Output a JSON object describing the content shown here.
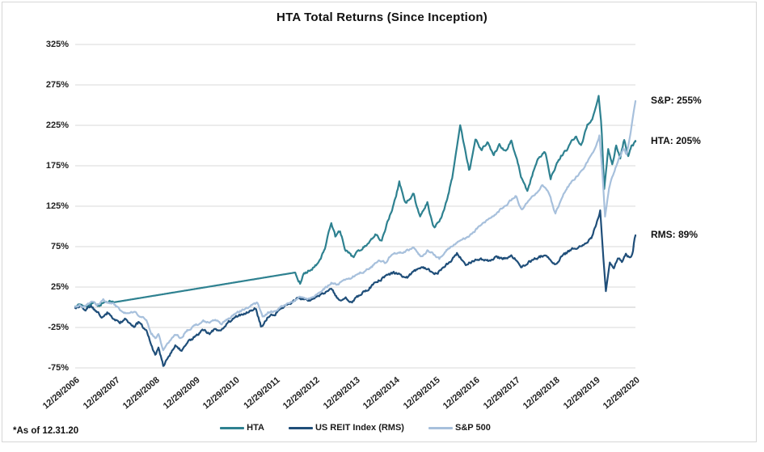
{
  "frame": {
    "title": "HTA Total Returns (Since Inception)",
    "footnote": "*As of 12.31.20"
  },
  "annotations": [
    {
      "id": "sp",
      "label": "S&P: 255%",
      "value": 255
    },
    {
      "id": "hta",
      "label": "HTA: 205%",
      "value": 205
    },
    {
      "id": "rms",
      "label": "RMS: 89%",
      "value": 89
    }
  ],
  "legend": [
    {
      "label": "HTA",
      "color": "#2E8190"
    },
    {
      "label": "US REIT Index (RMS)",
      "color": "#1F4E79"
    },
    {
      "label": "S&P 500",
      "color": "#A7C0DC"
    }
  ],
  "chart_data": {
    "type": "line",
    "title": "HTA Total Returns (Since Inception)",
    "grid": "horizontal",
    "legend_position": "bottom",
    "colors": {
      "grid": "#d9d9d9",
      "zero_axis": "#c9c9c9",
      "text": "#222222"
    },
    "y_axis": {
      "unit": "%",
      "ylim": [
        -75,
        325
      ],
      "ticks": [
        325,
        275,
        225,
        175,
        125,
        75,
        25,
        -25,
        -75
      ],
      "tick_labels": [
        "325%",
        "275%",
        "225%",
        "175%",
        "125%",
        "75%",
        "25%",
        "-25%",
        "-75%"
      ]
    },
    "x_axis": {
      "start": "12/29/2006",
      "end": "12/29/2020",
      "tick_labels": [
        "12/29/2006",
        "12/29/2007",
        "12/29/2008",
        "12/29/2009",
        "12/29/2010",
        "12/29/2011",
        "12/29/2012",
        "12/29/2013",
        "12/29/2014",
        "12/29/2015",
        "12/29/2016",
        "12/29/2017",
        "12/29/2018",
        "12/29/2019",
        "12/29/2020"
      ]
    },
    "series": [
      {
        "name": "HTA",
        "color": "#2E8190",
        "end_value_pct": 205,
        "jitter": 3.0,
        "seed": 7,
        "smooth_ranges": [
          [
            0.97,
            5.46
          ]
        ],
        "points": [
          [
            0,
            0
          ],
          [
            0.15,
            4
          ],
          [
            0.3,
            1
          ],
          [
            0.45,
            6
          ],
          [
            0.6,
            3
          ],
          [
            0.78,
            8
          ],
          [
            0.95,
            6
          ],
          [
            5.5,
            43
          ],
          [
            5.56,
            36
          ],
          [
            5.62,
            30
          ],
          [
            5.7,
            40
          ],
          [
            5.78,
            43
          ],
          [
            5.9,
            47
          ],
          [
            6.1,
            56
          ],
          [
            6.25,
            75
          ],
          [
            6.4,
            105
          ],
          [
            6.5,
            88
          ],
          [
            6.62,
            95
          ],
          [
            6.75,
            72
          ],
          [
            6.95,
            62
          ],
          [
            7.1,
            70
          ],
          [
            7.3,
            78
          ],
          [
            7.5,
            90
          ],
          [
            7.65,
            82
          ],
          [
            7.8,
            105
          ],
          [
            7.95,
            125
          ],
          [
            8.1,
            154
          ],
          [
            8.25,
            128
          ],
          [
            8.45,
            140
          ],
          [
            8.62,
            112
          ],
          [
            8.8,
            130
          ],
          [
            8.95,
            98
          ],
          [
            9.1,
            105
          ],
          [
            9.25,
            125
          ],
          [
            9.42,
            160
          ],
          [
            9.62,
            225
          ],
          [
            9.85,
            168
          ],
          [
            10.0,
            207
          ],
          [
            10.15,
            193
          ],
          [
            10.3,
            205
          ],
          [
            10.45,
            188
          ],
          [
            10.6,
            200
          ],
          [
            10.75,
            192
          ],
          [
            10.9,
            206
          ],
          [
            11.0,
            190
          ],
          [
            11.15,
            160
          ],
          [
            11.3,
            144
          ],
          [
            11.45,
            168
          ],
          [
            11.6,
            186
          ],
          [
            11.75,
            192
          ],
          [
            11.88,
            158
          ],
          [
            12.0,
            174
          ],
          [
            12.15,
            188
          ],
          [
            12.3,
            196
          ],
          [
            12.5,
            212
          ],
          [
            12.65,
            200
          ],
          [
            12.8,
            226
          ],
          [
            12.95,
            236
          ],
          [
            13.08,
            262
          ],
          [
            13.15,
            225
          ],
          [
            13.22,
            146
          ],
          [
            13.32,
            196
          ],
          [
            13.42,
            176
          ],
          [
            13.52,
            200
          ],
          [
            13.62,
            184
          ],
          [
            13.72,
            208
          ],
          [
            13.82,
            188
          ],
          [
            13.9,
            198
          ],
          [
            14,
            205
          ]
        ]
      },
      {
        "name": "US REIT Index (RMS)",
        "color": "#1F4E79",
        "end_value_pct": 89,
        "jitter": 2.8,
        "seed": 13,
        "smooth_ranges": [],
        "points": [
          [
            0,
            0
          ],
          [
            0.12,
            2
          ],
          [
            0.25,
            -3
          ],
          [
            0.4,
            1
          ],
          [
            0.55,
            -6
          ],
          [
            0.68,
            -12
          ],
          [
            0.8,
            -7
          ],
          [
            0.95,
            -14
          ],
          [
            1.1,
            -20
          ],
          [
            1.25,
            -14
          ],
          [
            1.45,
            -24
          ],
          [
            1.6,
            -18
          ],
          [
            1.78,
            -30
          ],
          [
            1.9,
            -45
          ],
          [
            2.0,
            -60
          ],
          [
            2.08,
            -50
          ],
          [
            2.2,
            -72
          ],
          [
            2.35,
            -60
          ],
          [
            2.5,
            -48
          ],
          [
            2.65,
            -53
          ],
          [
            2.8,
            -44
          ],
          [
            3.0,
            -36
          ],
          [
            3.2,
            -28
          ],
          [
            3.35,
            -33
          ],
          [
            3.5,
            -26
          ],
          [
            3.62,
            -30
          ],
          [
            3.8,
            -20
          ],
          [
            4.0,
            -12
          ],
          [
            4.2,
            -8
          ],
          [
            4.38,
            -4
          ],
          [
            4.52,
            -2
          ],
          [
            4.65,
            -25
          ],
          [
            4.8,
            -13
          ],
          [
            5.0,
            -8
          ],
          [
            5.2,
            0
          ],
          [
            5.4,
            5
          ],
          [
            5.6,
            12
          ],
          [
            5.8,
            8
          ],
          [
            6.0,
            12
          ],
          [
            6.2,
            16
          ],
          [
            6.4,
            22
          ],
          [
            6.6,
            8
          ],
          [
            6.75,
            14
          ],
          [
            6.9,
            6
          ],
          [
            7.05,
            13
          ],
          [
            7.25,
            20
          ],
          [
            7.5,
            30
          ],
          [
            7.7,
            36
          ],
          [
            7.95,
            43
          ],
          [
            8.1,
            40
          ],
          [
            8.3,
            37
          ],
          [
            8.5,
            45
          ],
          [
            8.7,
            50
          ],
          [
            8.9,
            44
          ],
          [
            9.05,
            42
          ],
          [
            9.2,
            50
          ],
          [
            9.4,
            58
          ],
          [
            9.55,
            67
          ],
          [
            9.75,
            52
          ],
          [
            9.9,
            56
          ],
          [
            10.1,
            60
          ],
          [
            10.3,
            57
          ],
          [
            10.5,
            62
          ],
          [
            10.7,
            60
          ],
          [
            10.9,
            64
          ],
          [
            11.05,
            58
          ],
          [
            11.15,
            48
          ],
          [
            11.3,
            55
          ],
          [
            11.5,
            60
          ],
          [
            11.7,
            64
          ],
          [
            11.85,
            60
          ],
          [
            12.0,
            52
          ],
          [
            12.15,
            62
          ],
          [
            12.3,
            68
          ],
          [
            12.5,
            74
          ],
          [
            12.7,
            78
          ],
          [
            12.9,
            85
          ],
          [
            13.05,
            108
          ],
          [
            13.12,
            120
          ],
          [
            13.2,
            60
          ],
          [
            13.26,
            20
          ],
          [
            13.36,
            55
          ],
          [
            13.46,
            48
          ],
          [
            13.56,
            62
          ],
          [
            13.66,
            57
          ],
          [
            13.76,
            66
          ],
          [
            13.86,
            61
          ],
          [
            13.93,
            65
          ],
          [
            13.97,
            84
          ],
          [
            14,
            89
          ]
        ]
      },
      {
        "name": "S&P 500",
        "color": "#A7C0DC",
        "end_value_pct": 255,
        "jitter": 2.2,
        "seed": 29,
        "smooth_ranges": [],
        "points": [
          [
            0,
            0
          ],
          [
            0.12,
            3
          ],
          [
            0.25,
            1
          ],
          [
            0.4,
            6
          ],
          [
            0.55,
            3
          ],
          [
            0.7,
            9
          ],
          [
            0.85,
            5
          ],
          [
            1.0,
            3
          ],
          [
            1.15,
            -4
          ],
          [
            1.3,
            -8
          ],
          [
            1.45,
            -5
          ],
          [
            1.6,
            -10
          ],
          [
            1.78,
            -15
          ],
          [
            1.9,
            -32
          ],
          [
            2.0,
            -38
          ],
          [
            2.08,
            -33
          ],
          [
            2.2,
            -52
          ],
          [
            2.35,
            -42
          ],
          [
            2.5,
            -34
          ],
          [
            2.65,
            -38
          ],
          [
            2.8,
            -28
          ],
          [
            3.0,
            -23
          ],
          [
            3.2,
            -16
          ],
          [
            3.35,
            -20
          ],
          [
            3.5,
            -14
          ],
          [
            3.65,
            -20
          ],
          [
            3.8,
            -15
          ],
          [
            4.0,
            -8
          ],
          [
            4.2,
            -3
          ],
          [
            4.4,
            2
          ],
          [
            4.55,
            6
          ],
          [
            4.68,
            -12
          ],
          [
            4.82,
            -7
          ],
          [
            5.0,
            -4
          ],
          [
            5.2,
            2
          ],
          [
            5.4,
            6
          ],
          [
            5.6,
            12
          ],
          [
            5.8,
            10
          ],
          [
            6.0,
            15
          ],
          [
            6.2,
            22
          ],
          [
            6.4,
            30
          ],
          [
            6.55,
            28
          ],
          [
            6.7,
            33
          ],
          [
            6.9,
            37
          ],
          [
            7.05,
            41
          ],
          [
            7.25,
            45
          ],
          [
            7.45,
            52
          ],
          [
            7.6,
            58
          ],
          [
            7.75,
            55
          ],
          [
            7.9,
            65
          ],
          [
            8.1,
            67
          ],
          [
            8.3,
            70
          ],
          [
            8.45,
            75
          ],
          [
            8.65,
            62
          ],
          [
            8.8,
            70
          ],
          [
            8.95,
            66
          ],
          [
            9.1,
            60
          ],
          [
            9.3,
            72
          ],
          [
            9.5,
            78
          ],
          [
            9.7,
            84
          ],
          [
            9.9,
            90
          ],
          [
            10.1,
            100
          ],
          [
            10.3,
            108
          ],
          [
            10.5,
            115
          ],
          [
            10.7,
            124
          ],
          [
            10.9,
            133
          ],
          [
            11.02,
            138
          ],
          [
            11.15,
            120
          ],
          [
            11.3,
            130
          ],
          [
            11.5,
            140
          ],
          [
            11.68,
            152
          ],
          [
            11.85,
            140
          ],
          [
            12.0,
            115
          ],
          [
            12.15,
            135
          ],
          [
            12.3,
            148
          ],
          [
            12.5,
            160
          ],
          [
            12.7,
            172
          ],
          [
            12.85,
            185
          ],
          [
            13.0,
            197
          ],
          [
            13.1,
            212
          ],
          [
            13.17,
            170
          ],
          [
            13.24,
            112
          ],
          [
            13.35,
            150
          ],
          [
            13.45,
            165
          ],
          [
            13.6,
            185
          ],
          [
            13.7,
            196
          ],
          [
            13.78,
            189
          ],
          [
            13.88,
            216
          ],
          [
            13.95,
            240
          ],
          [
            14,
            255
          ]
        ]
      }
    ]
  }
}
